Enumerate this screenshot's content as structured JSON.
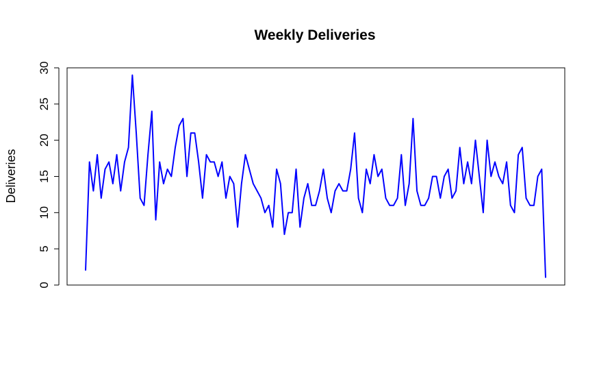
{
  "chart_data": {
    "type": "line",
    "title": "Weekly Deliveries",
    "xlabel": "",
    "ylabel": "Deliveries",
    "ylim": [
      0,
      30
    ],
    "yticks": [
      0,
      5,
      10,
      15,
      20,
      25,
      30
    ],
    "x_axis_shown": false,
    "grid": false,
    "legend": "none",
    "series": [
      {
        "color": "#0000ff",
        "values": [
          2,
          17,
          13,
          18,
          12,
          16,
          17,
          14,
          18,
          13,
          17,
          19,
          29,
          21,
          12,
          11,
          18,
          24,
          9,
          17,
          14,
          16,
          15,
          19,
          22,
          23,
          15,
          21,
          21,
          17,
          12,
          18,
          17,
          17,
          15,
          17,
          12,
          15,
          14,
          8,
          14,
          18,
          16,
          14,
          13,
          12,
          10,
          11,
          8,
          16,
          14,
          7,
          10,
          10,
          16,
          8,
          12,
          14,
          11,
          11,
          13,
          16,
          12,
          10,
          13,
          14,
          13,
          13,
          16,
          21,
          12,
          10,
          16,
          14,
          18,
          15,
          16,
          12,
          11,
          11,
          12,
          18,
          11,
          14,
          23,
          13,
          11,
          11,
          12,
          15,
          15,
          12,
          15,
          16,
          12,
          13,
          19,
          14,
          17,
          14,
          20,
          15,
          10,
          20,
          15,
          17,
          15,
          14,
          17,
          11,
          10,
          18,
          19,
          12,
          11,
          11,
          15,
          16,
          1
        ]
      }
    ]
  }
}
